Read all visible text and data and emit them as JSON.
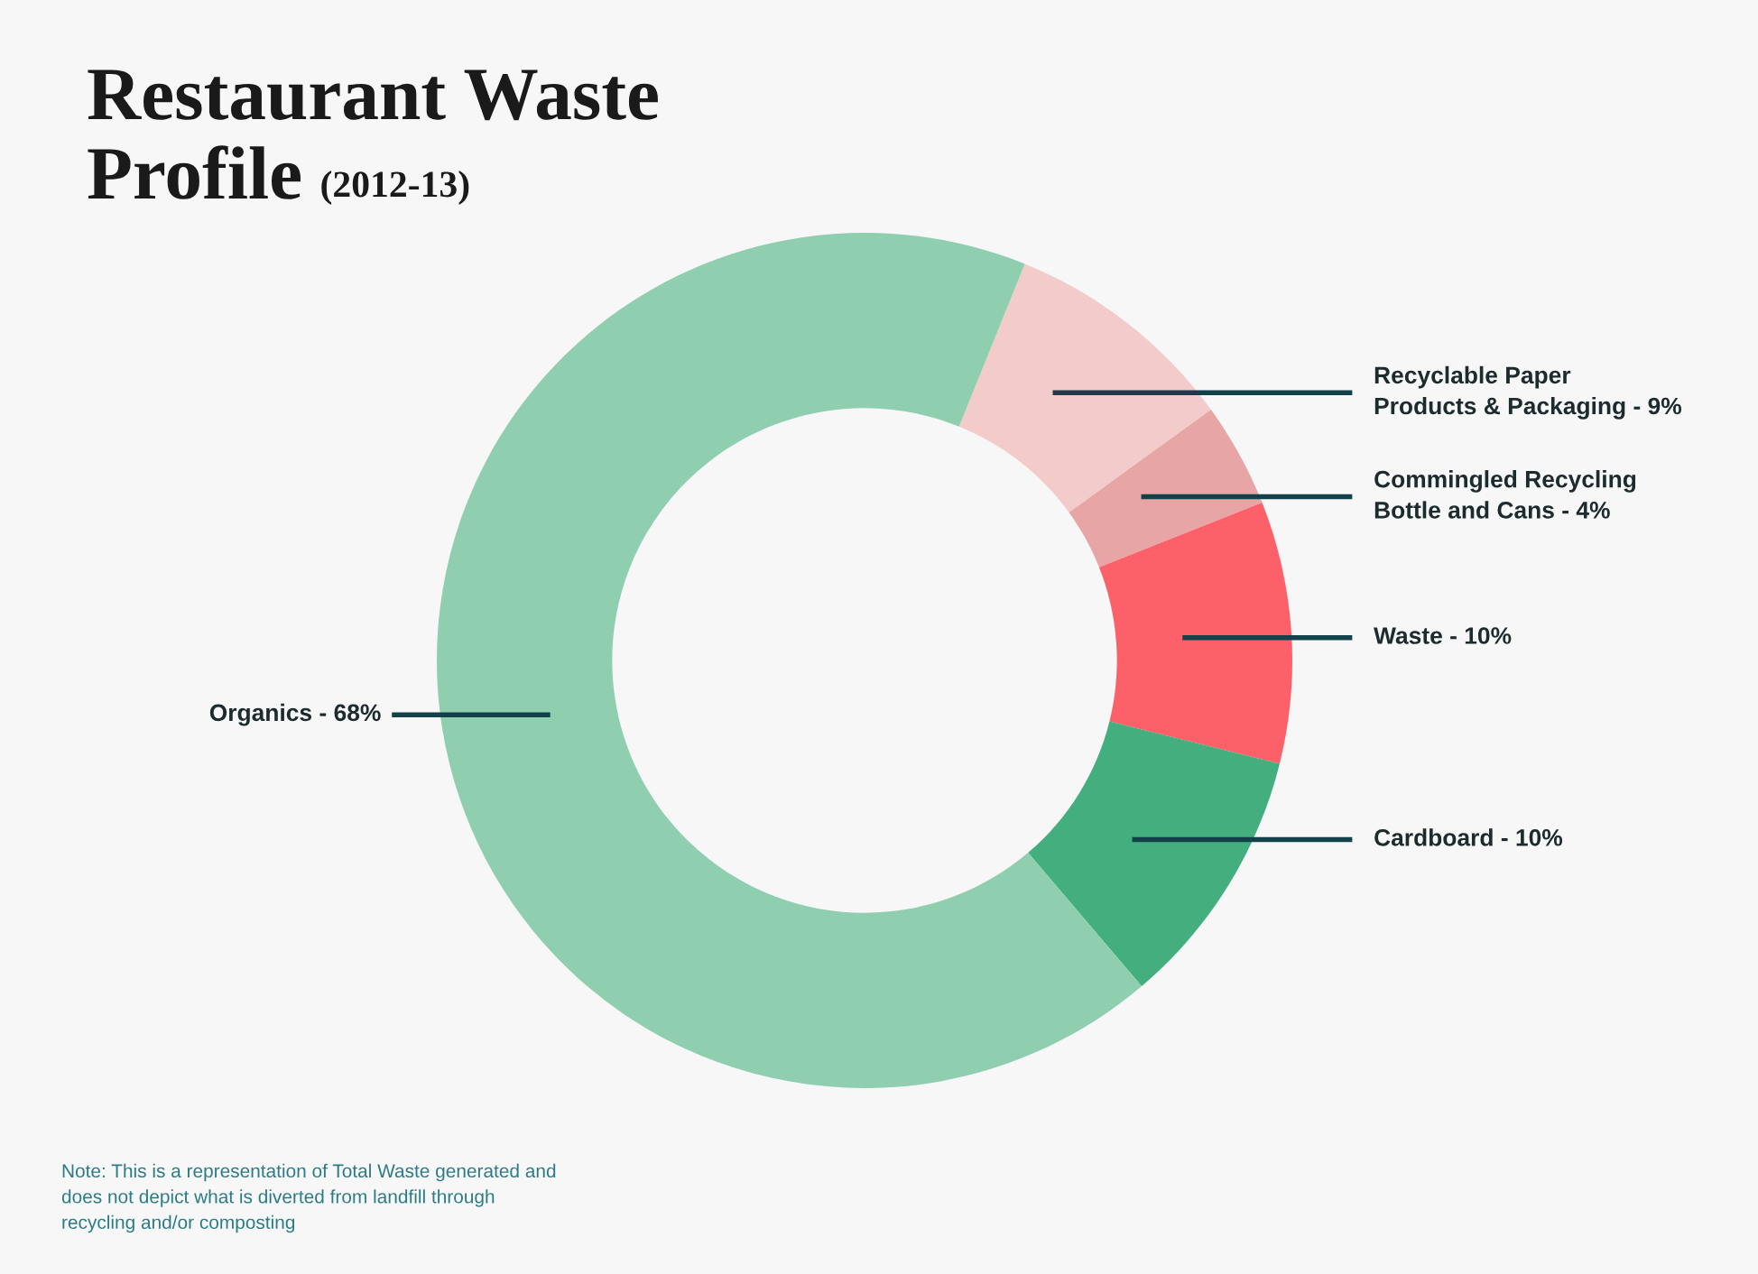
{
  "chart_data": {
    "type": "donut",
    "title": "Restaurant Waste Profile",
    "subtitle": "(2012-13)",
    "categories": [
      "Recyclable Paper\nProducts & Packaging",
      "Commingled Recycling\nBottle and Cans",
      "Waste",
      "Cardboard",
      "Organics"
    ],
    "values": [
      9,
      4,
      10,
      10,
      68
    ],
    "value_labels": [
      "9%",
      "4%",
      "10%",
      "10%",
      "68%"
    ],
    "colors": [
      "#f3cbcb",
      "#e8a5a5",
      "#fc6068",
      "#43af7e",
      "#8fcfb0"
    ],
    "annotations": [
      "Note: This is a representation of Total Waste generated and\ndoes not depict what is diverted from landfill through\nrecycling and/or composting"
    ],
    "legend": false
  }
}
